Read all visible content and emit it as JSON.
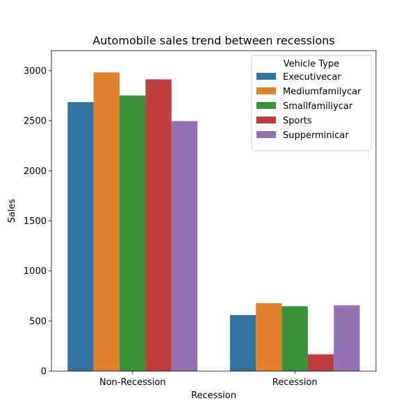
{
  "chart_data": {
    "type": "bar",
    "title": "Automobile sales trend between recessions",
    "xlabel": "Recession",
    "ylabel": "Sales",
    "categories": [
      "Non-Recession",
      "Recession"
    ],
    "ylim": [
      0,
      3200
    ],
    "yticks": [
      0,
      500,
      1000,
      1500,
      2000,
      2500,
      3000
    ],
    "grid": false,
    "legend": {
      "title": "Vehicle Type",
      "placement": "top-right"
    },
    "series": [
      {
        "name": "Executivecar",
        "color": "#3274a1",
        "values": [
          2686,
          560
        ]
      },
      {
        "name": "Mediumfamilycar",
        "color": "#e1812c",
        "values": [
          2983,
          678
        ]
      },
      {
        "name": "Smallfamiliycar",
        "color": "#3a923a",
        "values": [
          2752,
          648
        ]
      },
      {
        "name": "Sports",
        "color": "#c03d3e",
        "values": [
          2913,
          168
        ]
      },
      {
        "name": "Supperminicar",
        "color": "#9372b2",
        "values": [
          2497,
          657
        ]
      }
    ]
  }
}
